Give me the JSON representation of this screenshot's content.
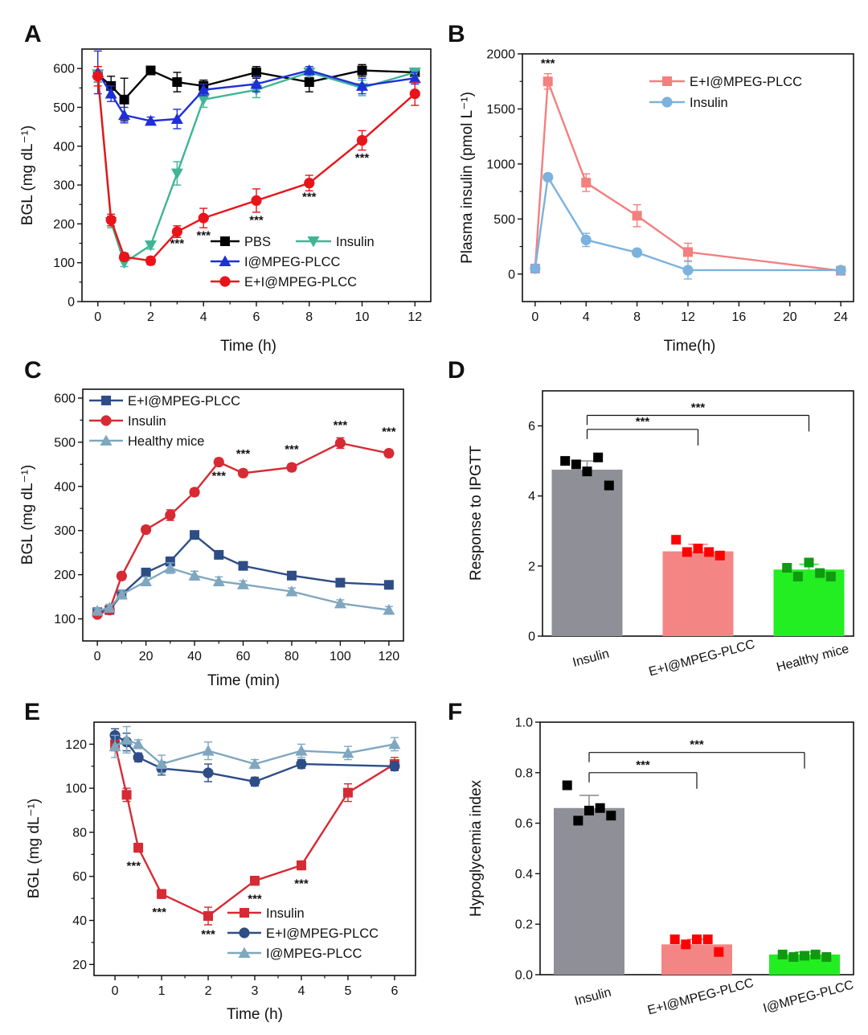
{
  "chart_data": [
    {
      "id": "A",
      "type": "line",
      "panel_label": "A",
      "xlabel": "Time (h)",
      "ylabel": "BGL (mg dL⁻¹)",
      "xlim": [
        -0.6,
        12.6
      ],
      "ylim": [
        0,
        650
      ],
      "xticks": [
        0,
        2,
        4,
        6,
        8,
        10,
        12
      ],
      "yticks": [
        0,
        100,
        200,
        300,
        400,
        500,
        600
      ],
      "legend_position": "bottom-right",
      "series": [
        {
          "name": "PBS",
          "color": "#000000",
          "marker": "square",
          "x": [
            0,
            0.5,
            1,
            2,
            3,
            4,
            6,
            8,
            10,
            12
          ],
          "y": [
            585,
            555,
            520,
            595,
            565,
            555,
            590,
            565,
            595,
            590
          ],
          "err": [
            20,
            25,
            55,
            10,
            25,
            15,
            15,
            25,
            15,
            10
          ]
        },
        {
          "name": "Insulin",
          "color": "#3fb595",
          "marker": "triangle-down",
          "x": [
            0,
            0.5,
            1,
            2,
            3,
            4,
            6,
            8,
            10,
            12
          ],
          "y": [
            585,
            205,
            100,
            145,
            330,
            520,
            545,
            590,
            550,
            590
          ],
          "err": [
            20,
            15,
            10,
            10,
            30,
            20,
            20,
            10,
            20,
            10
          ]
        },
        {
          "name": "I@MPEG-PLCC",
          "color": "#1f2fd6",
          "marker": "triangle-up",
          "x": [
            0,
            0.5,
            1,
            2,
            3,
            4,
            6,
            8,
            10,
            12
          ],
          "y": [
            590,
            535,
            480,
            465,
            470,
            545,
            560,
            595,
            555,
            575
          ],
          "err": [
            55,
            20,
            20,
            10,
            25,
            15,
            20,
            10,
            20,
            15
          ]
        },
        {
          "name": "E+I@MPEG-PLCC",
          "color": "#e8141a",
          "marker": "circle",
          "x": [
            0,
            0.5,
            1,
            2,
            3,
            4,
            6,
            8,
            10,
            12
          ],
          "y": [
            580,
            210,
            115,
            105,
            180,
            215,
            260,
            305,
            415,
            535
          ],
          "err": [
            25,
            15,
            10,
            10,
            15,
            25,
            30,
            20,
            25,
            30
          ]
        }
      ],
      "annotations": [
        {
          "text": "***",
          "x": 3,
          "y": 140
        },
        {
          "text": "***",
          "x": 4,
          "y": 160
        },
        {
          "text": "***",
          "x": 6,
          "y": 200
        },
        {
          "text": "***",
          "x": 8,
          "y": 260
        },
        {
          "text": "***",
          "x": 10,
          "y": 360
        }
      ]
    },
    {
      "id": "B",
      "type": "line",
      "panel_label": "B",
      "xlabel": "Time(h)",
      "ylabel": "Plasma insulin (pmol L⁻¹)",
      "xlim": [
        -1,
        25
      ],
      "ylim": [
        -250,
        2000
      ],
      "xticks": [
        0,
        4,
        8,
        12,
        16,
        20,
        24
      ],
      "yticks": [
        0,
        500,
        1000,
        1500,
        2000
      ],
      "legend_position": "top-right",
      "series": [
        {
          "name": "E+I@MPEG-PLCC",
          "color": "#f47f7f",
          "marker": "square",
          "x": [
            0,
            1,
            4,
            8,
            12,
            24
          ],
          "y": [
            50,
            1750,
            830,
            530,
            200,
            30
          ],
          "err": [
            30,
            70,
            80,
            100,
            80,
            30
          ]
        },
        {
          "name": "Insulin",
          "color": "#7cb2dd",
          "marker": "circle",
          "x": [
            0,
            1,
            4,
            8,
            12,
            24
          ],
          "y": [
            50,
            880,
            310,
            195,
            35,
            35
          ],
          "err": [
            30,
            30,
            60,
            30,
            80,
            30
          ]
        }
      ],
      "annotations": [
        {
          "text": "***",
          "x": 1,
          "y": 1880
        }
      ]
    },
    {
      "id": "C",
      "type": "line",
      "panel_label": "C",
      "xlabel": "Time (min)",
      "ylabel": "BGL (mg dL⁻¹)",
      "xlim": [
        -6,
        126
      ],
      "ylim": [
        50,
        620
      ],
      "xticks": [
        0,
        20,
        40,
        60,
        80,
        100,
        120
      ],
      "yticks": [
        100,
        200,
        300,
        400,
        500,
        600
      ],
      "legend_position": "top-left",
      "series": [
        {
          "name": "E+I@MPEG-PLCC",
          "color": "#2e4d87",
          "marker": "square",
          "x": [
            0,
            5,
            10,
            20,
            30,
            40,
            50,
            60,
            80,
            100,
            120
          ],
          "y": [
            115,
            120,
            155,
            205,
            230,
            290,
            245,
            220,
            198,
            182,
            177
          ],
          "err": [
            5,
            5,
            8,
            8,
            10,
            8,
            8,
            8,
            8,
            8,
            8
          ]
        },
        {
          "name": "Insulin",
          "color": "#d62a34",
          "marker": "circle",
          "x": [
            0,
            5,
            10,
            20,
            30,
            40,
            50,
            60,
            80,
            100,
            120
          ],
          "y": [
            110,
            120,
            197,
            302,
            335,
            387,
            455,
            430,
            443,
            498,
            475
          ],
          "err": [
            5,
            5,
            8,
            8,
            12,
            8,
            8,
            8,
            8,
            12,
            8
          ]
        },
        {
          "name": "Healthy mice",
          "color": "#7fa7bf",
          "marker": "triangle-up",
          "x": [
            0,
            5,
            10,
            20,
            30,
            40,
            50,
            60,
            80,
            100,
            120
          ],
          "y": [
            118,
            125,
            155,
            185,
            215,
            198,
            185,
            178,
            162,
            135,
            120
          ],
          "err": [
            5,
            8,
            8,
            10,
            12,
            10,
            10,
            8,
            8,
            8,
            8
          ]
        }
      ],
      "annotations": [
        {
          "text": "***",
          "x": 50,
          "y": 415
        },
        {
          "text": "***",
          "x": 60,
          "y": 465
        },
        {
          "text": "***",
          "x": 80,
          "y": 475
        },
        {
          "text": "***",
          "x": 100,
          "y": 530
        },
        {
          "text": "***",
          "x": 120,
          "y": 515
        }
      ]
    },
    {
      "id": "D",
      "type": "bar",
      "panel_label": "D",
      "xlabel": "",
      "ylabel": "Response to IPGTT",
      "categories": [
        "Insulin",
        "E+I@MPEG-PLCC",
        "Healthy mice"
      ],
      "values": [
        4.75,
        2.42,
        1.9
      ],
      "err": [
        0.25,
        0.2,
        0.15
      ],
      "colors": [
        "#8f8f97",
        "#f48585",
        "#22ee22"
      ],
      "point_colors": [
        "#000000",
        "#ff0000",
        "#119911"
      ],
      "points": [
        [
          5.0,
          4.9,
          4.7,
          5.1,
          4.3
        ],
        [
          2.75,
          2.4,
          2.5,
          2.4,
          2.3
        ],
        [
          1.95,
          1.7,
          2.1,
          1.8,
          1.7
        ]
      ],
      "ylim": [
        0,
        7
      ],
      "yticks": [
        0,
        2,
        4,
        6
      ],
      "brackets": [
        {
          "from": 0,
          "to": 1,
          "y": 5.9,
          "text": "***"
        },
        {
          "from": 0,
          "to": 2,
          "y": 6.3,
          "text": "***"
        }
      ]
    },
    {
      "id": "E",
      "type": "line",
      "panel_label": "E",
      "xlabel": "Time (h)",
      "ylabel": "BGL (mg dL⁻¹)",
      "xlim": [
        -0.45,
        6.45
      ],
      "ylim": [
        15,
        130
      ],
      "xticks": [
        0,
        1,
        2,
        3,
        4,
        5,
        6
      ],
      "yticks": [
        20,
        40,
        60,
        80,
        100,
        120
      ],
      "legend_position": "bottom-right",
      "series": [
        {
          "name": "Insulin",
          "color": "#d62a34",
          "marker": "square",
          "x": [
            0,
            0.25,
            0.5,
            1,
            2,
            3,
            4,
            5,
            6
          ],
          "y": [
            120,
            97,
            73,
            52,
            42,
            58,
            65,
            98,
            111
          ],
          "err": [
            3,
            3,
            2,
            2,
            4,
            2,
            2,
            4,
            3
          ]
        },
        {
          "name": "E+I@MPEG-PLCC",
          "color": "#2e4d87",
          "marker": "circle",
          "x": [
            0,
            0.25,
            0.5,
            1,
            2,
            3,
            4,
            6
          ],
          "y": [
            124,
            121,
            114,
            109,
            107,
            103,
            111,
            110
          ],
          "err": [
            3,
            4,
            2,
            3,
            4,
            2,
            2,
            2
          ]
        },
        {
          "name": "I@MPEG-PLCC",
          "color": "#7fa7bf",
          "marker": "triangle-up",
          "x": [
            0,
            0.25,
            0.5,
            1,
            2,
            3,
            4,
            5,
            6
          ],
          "y": [
            119,
            122,
            120,
            111,
            117,
            111,
            117,
            116,
            120
          ],
          "err": [
            5,
            6,
            2,
            4,
            4,
            2,
            3,
            3,
            3
          ]
        }
      ],
      "annotations": [
        {
          "text": "***",
          "x": 0.4,
          "y": 63
        },
        {
          "text": "***",
          "x": 0.95,
          "y": 42
        },
        {
          "text": "***",
          "x": 2,
          "y": 32
        },
        {
          "text": "***",
          "x": 3,
          "y": 48
        },
        {
          "text": "***",
          "x": 4,
          "y": 55
        }
      ]
    },
    {
      "id": "F",
      "type": "bar",
      "panel_label": "F",
      "xlabel": "",
      "ylabel": "Hypoglycemia index",
      "categories": [
        "Insulin",
        "E+I@MPEG-PLCC",
        "I@MPEG-PLCC"
      ],
      "values": [
        0.66,
        0.12,
        0.08
      ],
      "err": [
        0.05,
        0.02,
        0.01
      ],
      "colors": [
        "#8f8f97",
        "#f48585",
        "#22ee22"
      ],
      "point_colors": [
        "#000000",
        "#ff0000",
        "#119911"
      ],
      "points": [
        [
          0.75,
          0.61,
          0.65,
          0.66,
          0.63
        ],
        [
          0.14,
          0.12,
          0.14,
          0.14,
          0.09
        ],
        [
          0.08,
          0.07,
          0.075,
          0.08,
          0.07
        ]
      ],
      "ylim": [
        0,
        1.0
      ],
      "yticks": [
        0.0,
        0.2,
        0.4,
        0.6,
        0.8,
        1.0
      ],
      "brackets": [
        {
          "from": 0,
          "to": 1,
          "y": 0.8,
          "text": "***"
        },
        {
          "from": 0,
          "to": 2,
          "y": 0.88,
          "text": "***"
        }
      ]
    }
  ]
}
